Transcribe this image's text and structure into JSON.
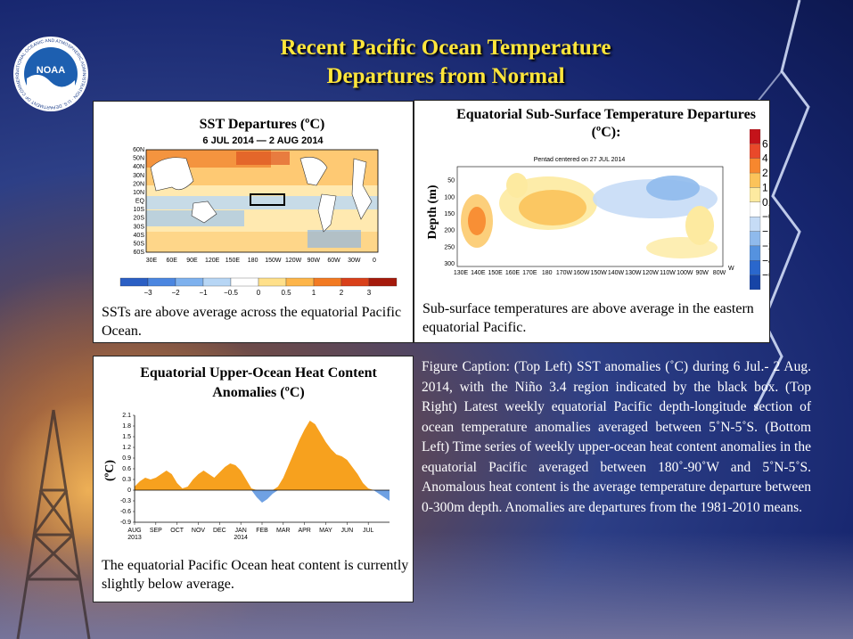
{
  "page": {
    "title_line1": "Recent Pacific Ocean Temperature",
    "title_line2": "Departures from Normal",
    "caption": "Figure Caption: (Top Left) SST anomalies (˚C) during 6 Jul.- 2 Aug. 2014, with the Niño 3.4 region indicated by the black box. (Top Right) Latest weekly equatorial Pacific depth-longitude section of ocean temperature anomalies averaged between 5˚N-5˚S. (Bottom Left) Time series of weekly upper-ocean heat content anomalies in the equatorial Pacific averaged between 180˚-90˚W and 5˚N-5˚S. Anomalous heat content is the average temperature departure between 0-300m depth. Anomalies are departures from the 1981-2010 means.",
    "logo_text": "NOAA",
    "logo_ring_text": "NATIONAL OCEANIC AND ATMOSPHERIC ADMINISTRATION · U.S. DEPARTMENT OF COMMERCE"
  },
  "sst_panel": {
    "title": "SST Departures (ºC)",
    "subtitle": "6 JUL 2014 — 2 AUG 2014",
    "lat_labels": [
      "60N",
      "50N",
      "40N",
      "30N",
      "20N",
      "10N",
      "EQ",
      "10S",
      "20S",
      "30S",
      "40S",
      "50S",
      "60S"
    ],
    "lon_labels": [
      "30E",
      "60E",
      "90E",
      "120E",
      "150E",
      "180",
      "150W",
      "120W",
      "90W",
      "60W",
      "30W",
      "0"
    ],
    "colorbar_labels": [
      "−3",
      "−2",
      "−1",
      "−0.5",
      "0",
      "0.5",
      "1",
      "2",
      "3"
    ],
    "colorbar_colors": [
      "#2b5fc4",
      "#4b86e0",
      "#7eb1ee",
      "#b7d6f5",
      "#ffffff",
      "#ffe08a",
      "#fdb54a",
      "#f27a22",
      "#d9401a",
      "#a51a0c"
    ],
    "caption": "SSTs are above average across the equatorial Pacific Ocean."
  },
  "subsurface_panel": {
    "title": "Equatorial Sub-Surface Temperature Departures (ºC):",
    "plot_title": "Pentad centered on 27 JUL 2014",
    "ylabel": "Depth (m)",
    "depth_labels": [
      "50",
      "100",
      "150",
      "200",
      "250",
      "300"
    ],
    "lon_labels": [
      "130E",
      "140E",
      "150E",
      "160E",
      "170E",
      "180",
      "170W",
      "160W",
      "150W",
      "140W",
      "130W",
      "120W",
      "110W",
      "100W",
      "90W",
      "80W"
    ],
    "lon_suffix": "W",
    "colorbar_labels": [
      "6",
      "4",
      "2",
      "1",
      "0.5",
      "−0.5",
      "−1",
      "−2",
      "−4",
      "−6"
    ],
    "colorbar_colors": [
      "#c4131a",
      "#e9492a",
      "#f7872e",
      "#fbc35a",
      "#fdeaa0",
      "#ffffff",
      "#c6dcf6",
      "#8fbaec",
      "#5592df",
      "#2a67cc",
      "#1744a6"
    ],
    "caption": "Sub-surface temperatures are above average in the eastern equatorial Pacific."
  },
  "heat_panel": {
    "title_line1": "Equatorial Upper-Ocean Heat Content",
    "title_line2": "Anomalies (ºC)",
    "ylabel": "(ºC)",
    "caption": "The equatorial Pacific Ocean heat content is currently slightly  below average.",
    "chart_data": {
      "type": "area",
      "title": "Equatorial Upper-Ocean Heat Content Anomalies (ºC)",
      "xlabel": "",
      "ylabel": "(ºC)",
      "ylim": [
        -0.9,
        2.1
      ],
      "yticks": [
        2.1,
        1.8,
        1.5,
        1.2,
        0.9,
        0.6,
        0.3,
        0,
        -0.3,
        -0.6,
        -0.9
      ],
      "x_tick_labels": [
        "AUG\n2013",
        "SEP",
        "OCT",
        "NOV",
        "DEC",
        "JAN\n2014",
        "FEB",
        "MAR",
        "APR",
        "MAY",
        "JUN",
        "JUL"
      ],
      "x_months_from_aug2013": [
        0,
        0.25,
        0.5,
        0.75,
        1.0,
        1.25,
        1.5,
        1.75,
        2.0,
        2.25,
        2.5,
        2.75,
        3.0,
        3.25,
        3.5,
        3.75,
        4.0,
        4.25,
        4.5,
        4.75,
        5.0,
        5.25,
        5.5,
        5.75,
        6.0,
        6.25,
        6.5,
        6.75,
        7.0,
        7.25,
        7.5,
        7.75,
        8.0,
        8.25,
        8.5,
        8.75,
        9.0,
        9.25,
        9.5,
        9.75,
        10.0,
        10.25,
        10.5,
        10.75,
        11.0,
        11.25,
        11.5,
        11.75,
        12.0
      ],
      "values": [
        0.1,
        0.25,
        0.35,
        0.3,
        0.35,
        0.45,
        0.55,
        0.45,
        0.2,
        0.05,
        0.1,
        0.3,
        0.45,
        0.55,
        0.45,
        0.35,
        0.5,
        0.65,
        0.75,
        0.7,
        0.55,
        0.3,
        0.05,
        -0.2,
        -0.35,
        -0.25,
        -0.1,
        0.1,
        0.35,
        0.7,
        1.05,
        1.4,
        1.7,
        1.95,
        1.85,
        1.6,
        1.35,
        1.15,
        1.0,
        0.95,
        0.85,
        0.65,
        0.45,
        0.2,
        0.05,
        0.0,
        -0.1,
        -0.2,
        -0.3
      ],
      "positive_color": "#f7a11e",
      "negative_color": "#6fa1e3"
    }
  }
}
